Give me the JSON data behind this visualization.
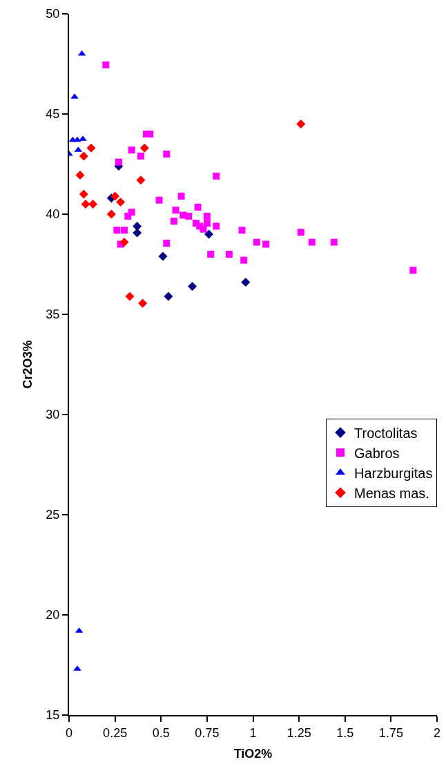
{
  "chart_data": {
    "type": "scatter",
    "xlabel": "TiO2%",
    "ylabel": "Cr2O3%",
    "xlim": [
      0,
      2
    ],
    "ylim": [
      15,
      50
    ],
    "xticks": [
      0,
      0.25,
      0.5,
      0.75,
      1,
      1.25,
      1.5,
      1.75,
      2
    ],
    "yticks": [
      15,
      20,
      25,
      30,
      35,
      40,
      45,
      50
    ],
    "legend": "right",
    "series": [
      {
        "name": "Troctolitas",
        "color": "#000080",
        "marker": "diamond",
        "x": [
          0.27,
          0.23,
          0.37,
          0.37,
          0.51,
          0.54,
          0.76,
          0.67,
          0.96
        ],
        "values": [
          42.4,
          40.8,
          39.4,
          39.07,
          37.9,
          35.9,
          39.0,
          36.4,
          36.6
        ]
      },
      {
        "name": "Gabros",
        "color": "#ff00ff",
        "marker": "square",
        "x": [
          0.2,
          0.42,
          0.44,
          0.34,
          0.39,
          0.53,
          0.27,
          0.49,
          0.61,
          0.58,
          0.57,
          0.34,
          0.32,
          0.26,
          0.3,
          0.28,
          0.53,
          0.8,
          0.7,
          0.62,
          0.65,
          0.75,
          0.75,
          0.69,
          0.71,
          0.73,
          0.8,
          0.94,
          1.02,
          1.07,
          0.77,
          0.87,
          0.95,
          1.26,
          1.32,
          1.44,
          1.87
        ],
        "values": [
          47.45,
          44.0,
          44.0,
          43.2,
          42.9,
          43.0,
          42.6,
          40.7,
          40.9,
          40.2,
          39.65,
          40.1,
          39.9,
          39.2,
          39.2,
          38.5,
          38.55,
          41.9,
          40.35,
          39.95,
          39.9,
          39.9,
          39.55,
          39.55,
          39.4,
          39.25,
          39.4,
          39.2,
          38.6,
          38.5,
          38.0,
          38.0,
          37.7,
          39.1,
          38.6,
          38.6,
          37.2
        ]
      },
      {
        "name": "Harzburgitas",
        "color": "#0000ff",
        "marker": "triangle",
        "x": [
          0.07,
          0.03,
          0.02,
          0.045,
          0.075,
          0.05,
          0.0,
          0.055,
          0.045
        ],
        "values": [
          48.0,
          45.85,
          43.7,
          43.7,
          43.75,
          43.2,
          43.0,
          19.2,
          17.3
        ]
      },
      {
        "name": "Menas mas.",
        "color": "#ff0000",
        "marker": "diamond",
        "x": [
          0.12,
          0.08,
          0.41,
          0.06,
          0.39,
          0.08,
          0.09,
          0.13,
          0.25,
          0.28,
          0.23,
          0.3,
          0.33,
          0.4,
          1.26
        ],
        "values": [
          43.3,
          42.9,
          43.3,
          41.95,
          41.7,
          41.0,
          40.5,
          40.5,
          40.9,
          40.6,
          40.0,
          38.6,
          35.9,
          35.55,
          44.5
        ]
      }
    ]
  }
}
